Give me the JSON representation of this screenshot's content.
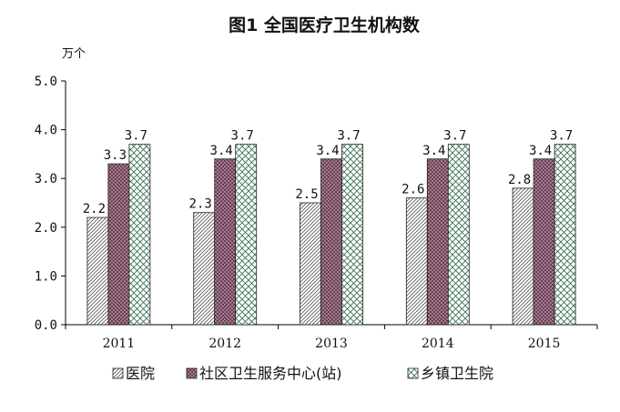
{
  "chart_data": {
    "type": "bar",
    "title": "图1   全国医疗卫生机构数",
    "unit_label": "万个",
    "categories": [
      "2011",
      "2012",
      "2013",
      "2014",
      "2015"
    ],
    "ylim": [
      0,
      5
    ],
    "yticks": [
      "0.0",
      "1.0",
      "2.0",
      "3.0",
      "4.0",
      "5.0"
    ],
    "series": [
      {
        "name": "医院",
        "values": [
          2.2,
          2.3,
          2.5,
          2.6,
          2.8
        ],
        "labels": [
          "2.2",
          "2.3",
          "2.5",
          "2.6",
          "2.8"
        ],
        "pattern": "diag"
      },
      {
        "name": "社区卫生服务中心(站)",
        "values": [
          3.3,
          3.4,
          3.4,
          3.4,
          3.4
        ],
        "labels": [
          "3.3",
          "3.4",
          "3.4",
          "3.4",
          "3.4"
        ],
        "pattern": "dots"
      },
      {
        "name": "乡镇卫生院",
        "values": [
          3.7,
          3.7,
          3.7,
          3.7,
          3.7
        ],
        "labels": [
          "3.7",
          "3.7",
          "3.7",
          "3.7",
          "3.7"
        ],
        "pattern": "cross"
      }
    ],
    "grid": false,
    "legend_position": "bottom"
  },
  "colors": {
    "dots_fill": "#6e3d55",
    "axis": "#000000",
    "bar_outline": "#222222"
  }
}
